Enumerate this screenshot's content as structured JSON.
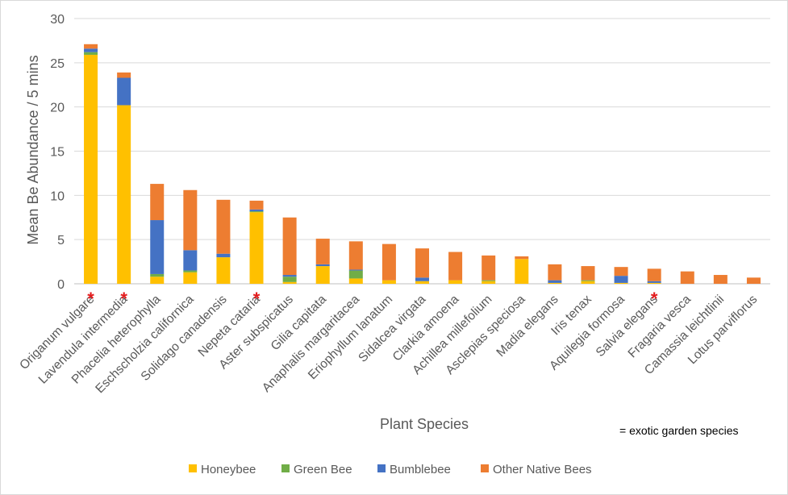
{
  "chart_data": {
    "type": "bar",
    "stacked": true,
    "categories": [
      "Origanum vulgare",
      "Lavendula intermedia",
      "Phacelia heterophylla",
      "Eschscholzia californica",
      "Solidago canadensis",
      "Nepeta cataria",
      "Aster subspicatus",
      "Gilia capitata",
      "Anaphalis margaritacea",
      "Eriophyllum lanatum",
      "Sidalcea virgata",
      "Clarkia amoena",
      "Achillea millefolium",
      "Asclepias speciosa",
      "Madia elegans",
      "Iris tenax",
      "Aquilegia formosa",
      "Salvia elegans",
      "Fragaria vesca",
      "Camassia leichtlinii",
      "Lotus parviflorus"
    ],
    "series": [
      {
        "name": "Honeybee",
        "color": "#ffc000",
        "values": [
          25.9,
          20.2,
          0.8,
          1.3,
          3.0,
          8.1,
          0.2,
          2.0,
          0.6,
          0.4,
          0.3,
          0.4,
          0.3,
          2.8,
          0.1,
          0.3,
          0.1,
          0.1,
          0.0,
          0.0,
          0.0
        ]
      },
      {
        "name": "Green Bee",
        "color": "#70ad47",
        "values": [
          0.3,
          0.0,
          0.3,
          0.2,
          0.0,
          0.1,
          0.6,
          0.0,
          0.9,
          0.0,
          0.0,
          0.0,
          0.1,
          0.0,
          0.0,
          0.1,
          0.0,
          0.0,
          0.0,
          0.0,
          0.0
        ]
      },
      {
        "name": "Bumblebee",
        "color": "#4472c4",
        "values": [
          0.4,
          3.1,
          6.1,
          2.3,
          0.4,
          0.2,
          0.2,
          0.2,
          0.1,
          0.0,
          0.4,
          0.0,
          0.0,
          0.0,
          0.3,
          0.0,
          0.8,
          0.2,
          0.0,
          0.0,
          0.0
        ]
      },
      {
        "name": "Other Native Bees",
        "color": "#ed7d31",
        "values": [
          0.5,
          0.6,
          4.1,
          6.8,
          6.1,
          1.0,
          6.5,
          2.9,
          3.2,
          4.1,
          3.3,
          3.2,
          2.8,
          0.3,
          1.8,
          1.6,
          1.0,
          1.4,
          1.4,
          1.0,
          0.7
        ]
      }
    ],
    "ylabel": "Mean Be Abundance / 5 mins",
    "xlabel": "Plant Species",
    "ylim": [
      0,
      30
    ],
    "yticks": [
      "0",
      "5",
      "10",
      "15",
      "20",
      "25",
      "30"
    ],
    "grid": true,
    "legend": "bottom",
    "exotic_marker": "*",
    "exotic_species": [
      "Origanum vulgare",
      "Lavendula intermedia",
      "Nepeta cataria",
      "Salvia elegans"
    ],
    "annotation": "= exotic garden species"
  }
}
